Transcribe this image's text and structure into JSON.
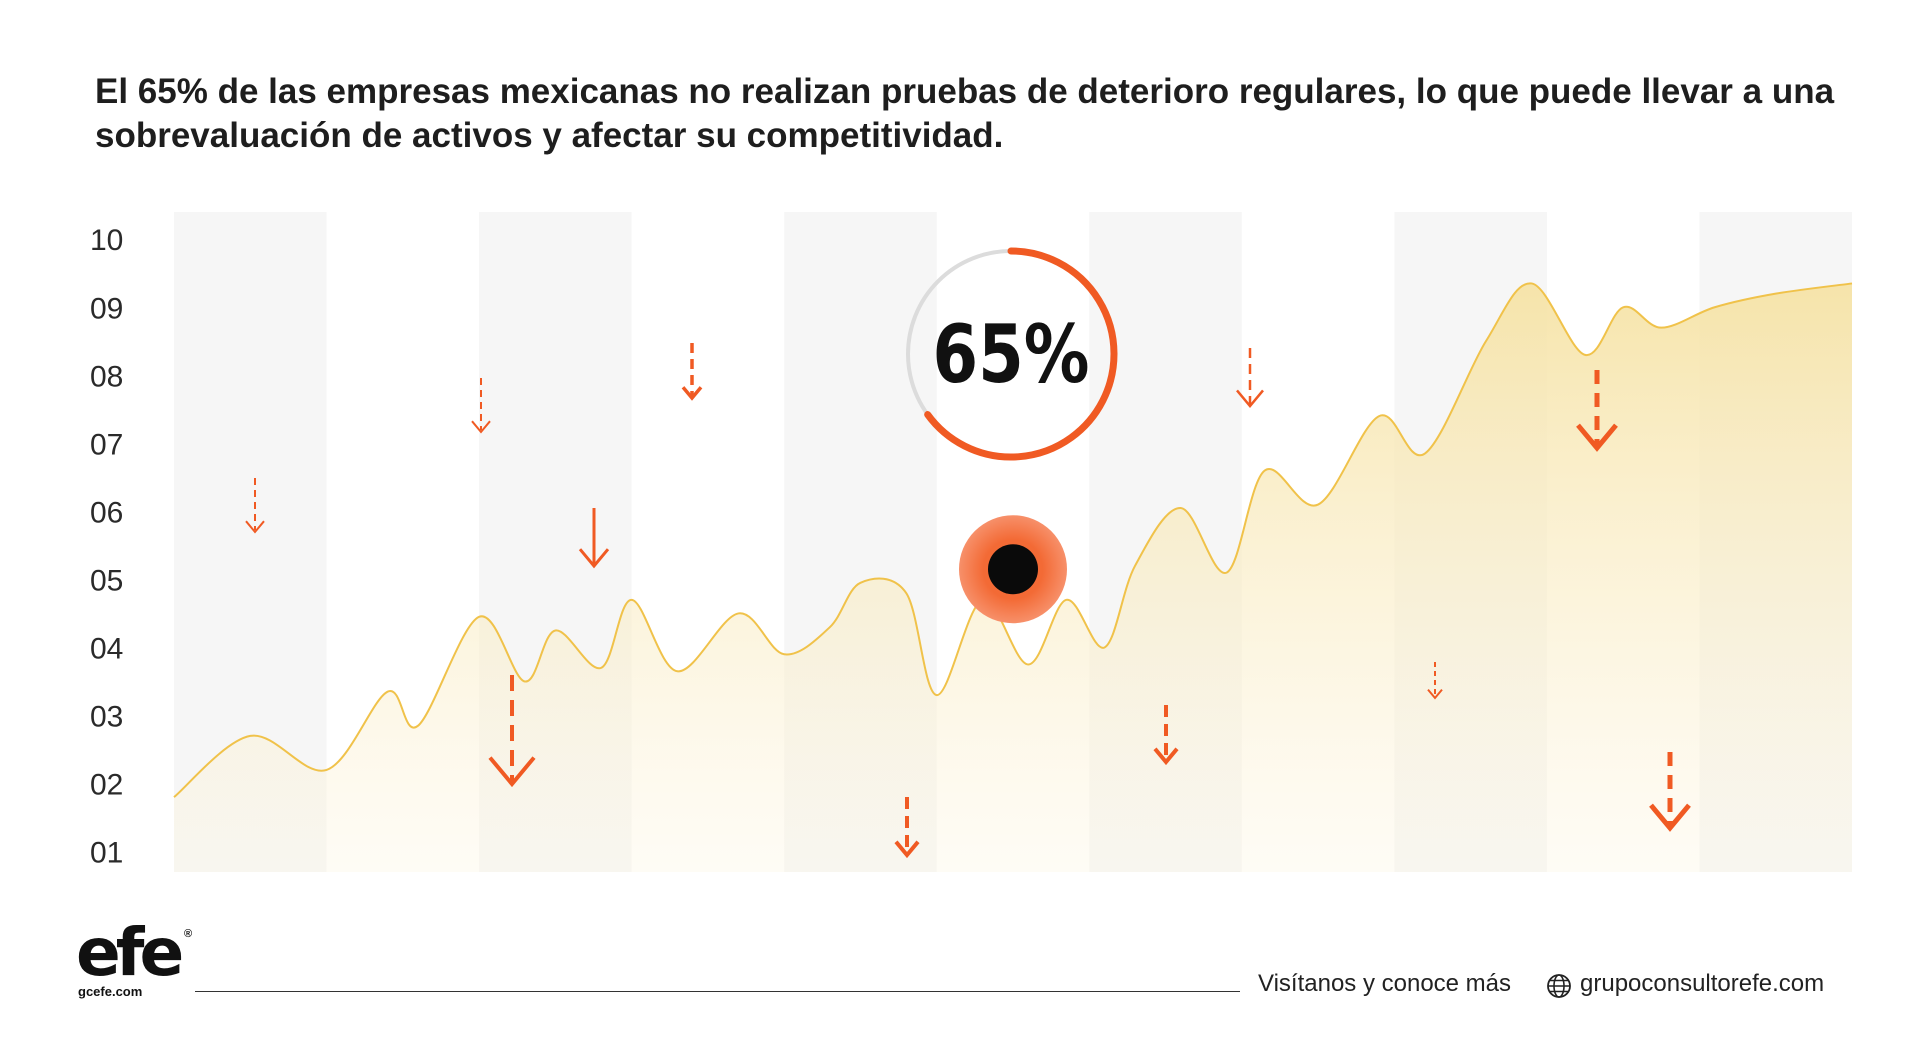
{
  "headline": "El 65% de las empresas mexicanas no realizan pruebas de deterioro regulares, lo que puede llevar a una sobrevaluación de activos y afectar su competitividad.",
  "chart_data": {
    "type": "area",
    "y_ticks": [
      "10",
      "09",
      "08",
      "07",
      "06",
      "05",
      "04",
      "03",
      "02",
      "01"
    ],
    "ylim": [
      0.7,
      10.4
    ],
    "series": [
      {
        "x": [
          0,
          0.5,
          1,
          1.4,
          1.6,
          2,
          2.3,
          2.5,
          2.8,
          3,
          3.3,
          3.7,
          4,
          4.3,
          4.5,
          4.8,
          5,
          5.3,
          5.6,
          5.85,
          6.1,
          6.3,
          6.6,
          6.9,
          7.15,
          7.5,
          7.9,
          8.2,
          8.6,
          8.9,
          9.25,
          9.5,
          9.75,
          10.1,
          10.5,
          11
        ],
        "y": [
          1.8,
          2.7,
          2.2,
          3.35,
          2.85,
          4.45,
          3.5,
          4.25,
          3.7,
          4.7,
          3.65,
          4.5,
          3.9,
          4.3,
          4.95,
          4.8,
          3.3,
          4.7,
          3.75,
          4.7,
          4,
          5.2,
          6.05,
          5.1,
          6.6,
          6.1,
          7.4,
          6.85,
          8.5,
          9.35,
          8.3,
          9.0,
          8.7,
          9.0,
          9.2,
          9.35
        ]
      }
    ],
    "highlight": {
      "label": "65%",
      "percent": 65,
      "x": 5.5,
      "y": 5.15
    },
    "colors": {
      "line": "#f0c24a",
      "area_top": "#f6e3a6",
      "band": "#f6f6f6",
      "accent": "#f05a23",
      "accent_light": "#f58a4e",
      "ring_track": "#dcdcdc"
    }
  },
  "footer": {
    "logo": "efe",
    "logo_reg": "®",
    "logo_sub": "gcefe.com",
    "visit_text": "Visítanos y conoce más",
    "website": "grupoconsultorefe.com",
    "globe_icon": "globe-icon"
  }
}
